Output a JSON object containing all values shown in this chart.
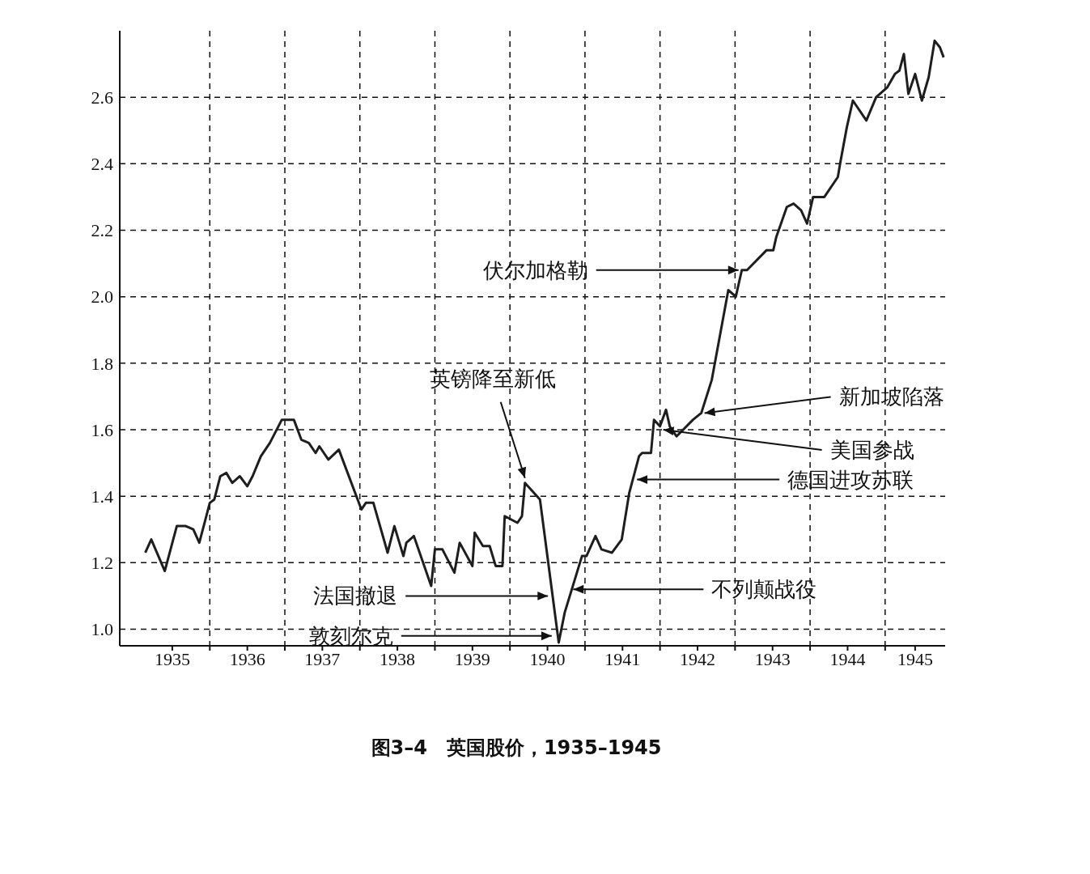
{
  "chart_data": {
    "type": "line",
    "title": "图3–4　英国股价，1935–1945",
    "annotations": [
      {
        "text": "英镑降至新低",
        "x": 1940.2,
        "y": 1.44
      },
      {
        "text": "法国撤退",
        "x": 1940.55,
        "y": 1.1
      },
      {
        "text": "敦刻尔克",
        "x": 1940.6,
        "y": 0.98
      },
      {
        "text": "不列颠战役",
        "x": 1940.8,
        "y": 1.12
      },
      {
        "text": "德国进攻苏联",
        "x": 1941.65,
        "y": 1.45
      },
      {
        "text": "美国参战",
        "x": 1942.0,
        "y": 1.6
      },
      {
        "text": "新加坡陷落",
        "x": 1942.55,
        "y": 1.65
      },
      {
        "text": "伏尔加格勒",
        "x": 1943.09,
        "y": 2.08
      }
    ],
    "x": [
      1935.14,
      1935.22,
      1935.4,
      1935.56,
      1935.68,
      1935.78,
      1935.86,
      1936.0,
      1936.06,
      1936.14,
      1936.22,
      1936.3,
      1936.4,
      1936.5,
      1936.57,
      1936.68,
      1936.8,
      1936.96,
      1937.12,
      1937.22,
      1937.32,
      1937.41,
      1937.46,
      1937.58,
      1937.72,
      1938.02,
      1938.08,
      1938.18,
      1938.37,
      1938.46,
      1938.58,
      1938.62,
      1938.72,
      1938.95,
      1939.0,
      1939.1,
      1939.26,
      1939.33,
      1939.5,
      1939.53,
      1939.64,
      1939.73,
      1939.81,
      1939.9,
      1939.93,
      1940.1,
      1940.16,
      1940.2,
      1940.4,
      1940.65,
      1940.73,
      1940.96,
      1941.02,
      1941.14,
      1941.22,
      1941.36,
      1941.49,
      1941.59,
      1941.72,
      1941.76,
      1941.88,
      1941.92,
      1942.0,
      1942.08,
      1942.13,
      1942.22,
      1942.44,
      1942.55,
      1942.69,
      1942.91,
      1943.01,
      1943.09,
      1943.16,
      1943.42,
      1943.51,
      1943.55,
      1943.69,
      1943.78,
      1943.88,
      1943.96,
      1944.04,
      1944.19,
      1944.37,
      1944.4,
      1944.49,
      1944.57,
      1944.75,
      1944.88,
      1945.03,
      1945.13,
      1945.19,
      1945.25,
      1945.31,
      1945.4,
      1945.49,
      1945.58,
      1945.66,
      1945.73,
      1945.78
    ],
    "values": [
      1.23,
      1.27,
      1.175,
      1.31,
      1.31,
      1.3,
      1.26,
      1.38,
      1.39,
      1.46,
      1.47,
      1.44,
      1.46,
      1.43,
      1.46,
      1.52,
      1.56,
      1.63,
      1.63,
      1.57,
      1.56,
      1.53,
      1.55,
      1.51,
      1.54,
      1.36,
      1.38,
      1.38,
      1.23,
      1.31,
      1.22,
      1.26,
      1.28,
      1.13,
      1.24,
      1.24,
      1.17,
      1.26,
      1.19,
      1.29,
      1.25,
      1.25,
      1.19,
      1.19,
      1.34,
      1.32,
      1.34,
      1.44,
      1.39,
      0.96,
      1.05,
      1.22,
      1.22,
      1.28,
      1.24,
      1.23,
      1.27,
      1.41,
      1.52,
      1.53,
      1.53,
      1.63,
      1.61,
      1.66,
      1.61,
      1.58,
      1.63,
      1.65,
      1.75,
      2.02,
      2.0,
      2.08,
      2.08,
      2.14,
      2.14,
      2.18,
      2.27,
      2.28,
      2.26,
      2.22,
      2.3,
      2.3,
      2.36,
      2.4,
      2.51,
      2.59,
      2.53,
      2.6,
      2.63,
      2.67,
      2.68,
      2.73,
      2.61,
      2.67,
      2.59,
      2.66,
      2.77,
      2.75,
      2.72
    ],
    "color": "#1e1e1e",
    "xlim": [
      1934.8,
      1945.8
    ],
    "xticks": [
      {
        "value": 1935.5,
        "label": "1935"
      },
      {
        "value": 1936,
        "label": null
      },
      {
        "value": 1936.5,
        "label": "1936"
      },
      {
        "value": 1937,
        "label": null
      },
      {
        "value": 1937.5,
        "label": "1937"
      },
      {
        "value": 1938,
        "label": null
      },
      {
        "value": 1938.5,
        "label": "1938"
      },
      {
        "value": 1939,
        "label": null
      },
      {
        "value": 1939.5,
        "label": "1939"
      },
      {
        "value": 1940,
        "label": null
      },
      {
        "value": 1940.5,
        "label": "1940"
      },
      {
        "value": 1941,
        "label": null
      },
      {
        "value": 1941.5,
        "label": "1941"
      },
      {
        "value": 1942,
        "label": null
      },
      {
        "value": 1942.5,
        "label": "1942"
      },
      {
        "value": 1943,
        "label": null
      },
      {
        "value": 1943.5,
        "label": "1943"
      },
      {
        "value": 1944,
        "label": null
      },
      {
        "value": 1944.5,
        "label": "1944"
      },
      {
        "value": 1945,
        "label": null
      },
      {
        "value": 1945.4,
        "label": "1945"
      }
    ],
    "ylim": [
      0.95,
      2.8
    ],
    "yticks": [
      {
        "value": 1,
        "label": "1.0"
      },
      1.2,
      1.4,
      1.6,
      1.8,
      {
        "value": 2,
        "label": "2.0"
      },
      2.2,
      2.4,
      2.6
    ],
    "grid": true,
    "line_style": "solid",
    "marker": "none"
  }
}
